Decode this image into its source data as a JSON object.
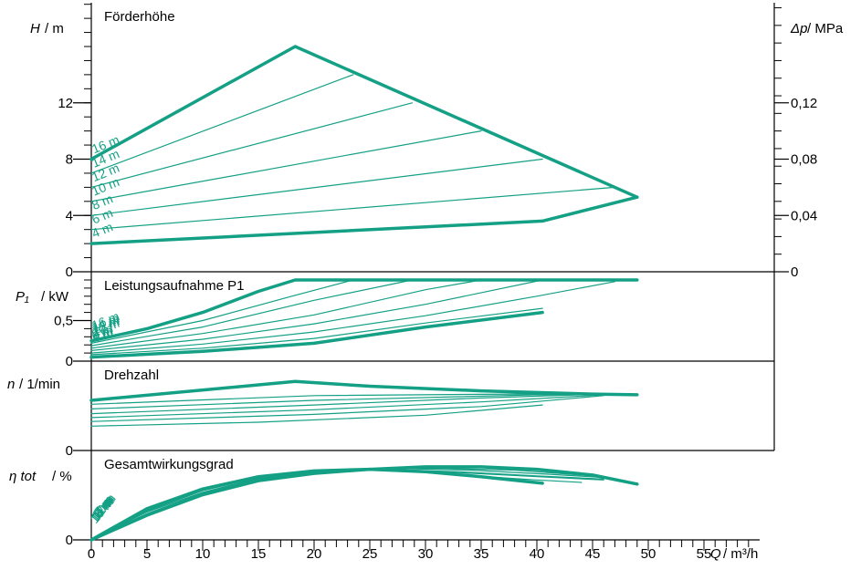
{
  "colors": {
    "curve": "#14a085",
    "axis": "#000000",
    "background": "#ffffff"
  },
  "chart_data": {
    "type": "line",
    "x_axis": {
      "label_var": "Q",
      "label_unit": "m³/h",
      "range": [
        0,
        60
      ],
      "ticks": [
        0,
        5,
        10,
        15,
        20,
        25,
        30,
        35,
        40,
        45,
        50,
        55
      ],
      "tick_labels": [
        "0",
        "5",
        "10",
        "15",
        "20",
        "25",
        "30",
        "35",
        "40",
        "45",
        "50",
        "55"
      ]
    },
    "panels": {
      "head": {
        "title": "Förderhöhe",
        "y_label_var": "H",
        "y_label_unit": "m",
        "ylim": [
          0,
          18.3
        ],
        "y_ticks": [
          0,
          4,
          8,
          12
        ],
        "y_tick_labels": [
          "0",
          "4",
          "8",
          "12"
        ],
        "right_axis_var": "Δp",
        "right_axis_unit": "MPa",
        "right_ticks": [
          0,
          0.04,
          0.08,
          0.12
        ],
        "right_tick_labels": [
          "0",
          "0,04",
          "0,08",
          "0,12"
        ],
        "curve_labels": [
          "16 m",
          "14 m",
          "12 m",
          "10 m",
          "8 m",
          "6 m",
          "4 m"
        ],
        "max_envelope": [
          [
            0,
            8
          ],
          [
            18.3,
            16
          ],
          [
            49,
            5.3
          ]
        ],
        "min_curve": [
          [
            0,
            2
          ],
          [
            40.5,
            3.6
          ],
          [
            49,
            5.3
          ]
        ],
        "setpoint_lines": [
          {
            "label": "14 m",
            "points": [
              [
                0,
                7.0
              ],
              [
                23.5,
                14.0
              ]
            ]
          },
          {
            "label": "12 m",
            "points": [
              [
                0,
                6.0
              ],
              [
                28.8,
                12.0
              ]
            ]
          },
          {
            "label": "10 m",
            "points": [
              [
                0,
                5.0
              ],
              [
                35.0,
                10.0
              ]
            ]
          },
          {
            "label": "8 m",
            "points": [
              [
                0,
                4.0
              ],
              [
                40.5,
                8.0
              ]
            ]
          },
          {
            "label": "6 m",
            "points": [
              [
                0,
                3.0
              ],
              [
                47.0,
                6.0
              ]
            ]
          }
        ]
      },
      "power": {
        "title": "Leistungsaufnahme P1",
        "y_label_var": "P₁",
        "y_label_unit": "kW",
        "ylim": [
          0,
          1.08
        ],
        "y_ticks": [
          0,
          0.5
        ],
        "y_tick_labels": [
          "0",
          "0,5"
        ],
        "curve_labels": [
          "16 m",
          "14 m",
          "12 m",
          "10 m",
          "8 m",
          "6 m",
          "4 m"
        ],
        "max_line": [
          [
            0,
            0.25
          ],
          [
            5,
            0.4
          ],
          [
            10,
            0.6
          ],
          [
            15,
            0.86
          ],
          [
            18.3,
            1.0
          ],
          [
            49,
            1.0
          ]
        ],
        "min_curve": [
          [
            0,
            0.05
          ],
          [
            10,
            0.12
          ],
          [
            20,
            0.22
          ],
          [
            30,
            0.42
          ],
          [
            40.5,
            0.6
          ]
        ],
        "intermediate": [
          [
            [
              0,
              0.22
            ],
            [
              10,
              0.5
            ],
            [
              18,
              0.8
            ],
            [
              23.5,
              1.0
            ]
          ],
          [
            [
              0,
              0.19
            ],
            [
              10,
              0.42
            ],
            [
              20,
              0.75
            ],
            [
              28.8,
              1.0
            ]
          ],
          [
            [
              0,
              0.16
            ],
            [
              10,
              0.34
            ],
            [
              20,
              0.57
            ],
            [
              30,
              0.88
            ],
            [
              35,
              1.0
            ]
          ],
          [
            [
              0,
              0.13
            ],
            [
              10,
              0.27
            ],
            [
              20,
              0.46
            ],
            [
              30,
              0.7
            ],
            [
              40.5,
              1.0
            ]
          ],
          [
            [
              0,
              0.1
            ],
            [
              10,
              0.21
            ],
            [
              20,
              0.36
            ],
            [
              30,
              0.56
            ],
            [
              40,
              0.8
            ],
            [
              47,
              0.98
            ]
          ],
          [
            [
              0,
              0.08
            ],
            [
              10,
              0.16
            ],
            [
              20,
              0.28
            ],
            [
              30,
              0.47
            ],
            [
              40.5,
              0.65
            ]
          ]
        ]
      },
      "speed": {
        "title": "Drehzahl",
        "y_label_var": "n",
        "y_label_unit": "1/min",
        "ylim": [
          0,
          1.0
        ],
        "y_ticks": [
          0
        ],
        "y_tick_labels": [
          "0"
        ],
        "max_curve": [
          [
            0,
            0.64
          ],
          [
            18.3,
            0.88
          ],
          [
            25,
            0.82
          ],
          [
            35,
            0.76
          ],
          [
            45,
            0.72
          ],
          [
            49,
            0.71
          ]
        ],
        "min_curve": [
          [
            0,
            0.31
          ],
          [
            15,
            0.36
          ],
          [
            30,
            0.45
          ],
          [
            40.5,
            0.58
          ]
        ],
        "intermediate": [
          [
            [
              0,
              0.59
            ],
            [
              20,
              0.7
            ],
            [
              38,
              0.72
            ],
            [
              46,
              0.72
            ]
          ],
          [
            [
              0,
              0.53
            ],
            [
              20,
              0.64
            ],
            [
              40,
              0.71
            ],
            [
              46,
              0.72
            ]
          ],
          [
            [
              0,
              0.47
            ],
            [
              20,
              0.58
            ],
            [
              35,
              0.67
            ],
            [
              46,
              0.72
            ]
          ],
          [
            [
              0,
              0.42
            ],
            [
              20,
              0.52
            ],
            [
              35,
              0.62
            ],
            [
              46,
              0.71
            ]
          ],
          [
            [
              0,
              0.37
            ],
            [
              20,
              0.46
            ],
            [
              35,
              0.56
            ],
            [
              46,
              0.7
            ]
          ]
        ]
      },
      "efficiency": {
        "title": "Gesamtwirkungsgrad",
        "y_label_var": "η tot",
        "y_label_unit": "%",
        "ylim": [
          0,
          1.0
        ],
        "y_ticks": [
          0
        ],
        "y_tick_labels": [
          "0"
        ],
        "curve_labels": [
          "16 m",
          "14 m",
          "12 m",
          "10 m",
          "8 m",
          "6 m",
          "4 m"
        ],
        "max_curve": [
          [
            0,
            0
          ],
          [
            5,
            0.3
          ],
          [
            10,
            0.55
          ],
          [
            15,
            0.72
          ],
          [
            20,
            0.81
          ],
          [
            25,
            0.86
          ],
          [
            30,
            0.89
          ],
          [
            35,
            0.89
          ],
          [
            40,
            0.86
          ],
          [
            45,
            0.79
          ],
          [
            49,
            0.68
          ]
        ],
        "min_curve": [
          [
            0,
            0
          ],
          [
            5,
            0.38
          ],
          [
            10,
            0.62
          ],
          [
            15,
            0.77
          ],
          [
            20,
            0.84
          ],
          [
            25,
            0.86
          ],
          [
            30,
            0.83
          ],
          [
            35,
            0.77
          ],
          [
            40.5,
            0.69
          ]
        ],
        "intermediate": [
          [
            [
              0,
              0
            ],
            [
              5,
              0.32
            ],
            [
              10,
              0.57
            ],
            [
              15,
              0.74
            ],
            [
              20,
              0.83
            ],
            [
              26,
              0.87
            ],
            [
              32,
              0.87
            ],
            [
              38,
              0.85
            ],
            [
              46,
              0.77
            ]
          ],
          [
            [
              0,
              0
            ],
            [
              5,
              0.34
            ],
            [
              10,
              0.58
            ],
            [
              15,
              0.75
            ],
            [
              20,
              0.84
            ],
            [
              27,
              0.87
            ],
            [
              34,
              0.85
            ],
            [
              41,
              0.8
            ],
            [
              46,
              0.76
            ]
          ],
          [
            [
              0,
              0
            ],
            [
              5,
              0.35
            ],
            [
              10,
              0.6
            ],
            [
              15,
              0.76
            ],
            [
              20,
              0.84
            ],
            [
              26,
              0.86
            ],
            [
              33,
              0.83
            ],
            [
              40,
              0.78
            ],
            [
              46,
              0.74
            ]
          ],
          [
            [
              0,
              0
            ],
            [
              5,
              0.36
            ],
            [
              10,
              0.61
            ],
            [
              15,
              0.77
            ],
            [
              20,
              0.84
            ],
            [
              26,
              0.86
            ],
            [
              33,
              0.82
            ],
            [
              40,
              0.77
            ],
            [
              46,
              0.73
            ]
          ],
          [
            [
              0,
              0
            ],
            [
              5,
              0.37
            ],
            [
              10,
              0.62
            ],
            [
              15,
              0.77
            ],
            [
              20,
              0.84
            ],
            [
              26,
              0.86
            ],
            [
              32,
              0.8
            ],
            [
              40,
              0.73
            ],
            [
              44,
              0.7
            ]
          ]
        ]
      }
    }
  }
}
